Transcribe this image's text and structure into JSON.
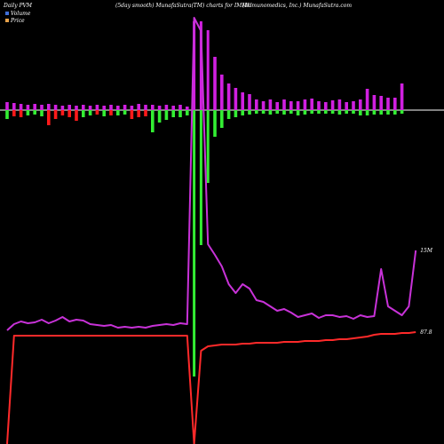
{
  "header": {
    "left": "Daily PVM",
    "center": "(5day smooth) MunafaSutra(TM) charts for IMMU",
    "right": "(Immunomedics, Inc.) MunafaSutra.com"
  },
  "legend": [
    {
      "label": "Volume",
      "color": "#3f6fd8"
    },
    {
      "label": "Price",
      "color": "#e8a24a"
    }
  ],
  "chart_data": {
    "type": "bar",
    "title": "",
    "xlabel": "",
    "ylabel": "",
    "colors": {
      "up": "#d020e0",
      "down_red": "#ff1a1a",
      "down_green": "#33ee33",
      "volume_line": "#c832d8",
      "price_line": "#ff2a2a"
    },
    "end_labels": {
      "volume": "15M",
      "price": "87.8"
    },
    "bars": [
      {
        "up": 9,
        "down": 10,
        "dc": "green"
      },
      {
        "up": 8,
        "down": 7,
        "dc": "red"
      },
      {
        "up": 7,
        "down": 8,
        "dc": "red"
      },
      {
        "up": 6,
        "down": 6,
        "dc": "green"
      },
      {
        "up": 7,
        "down": 5,
        "dc": "green"
      },
      {
        "up": 6,
        "down": 7,
        "dc": "green"
      },
      {
        "up": 7,
        "down": 17,
        "dc": "red"
      },
      {
        "up": 6,
        "down": 10,
        "dc": "red"
      },
      {
        "up": 5,
        "down": 6,
        "dc": "red"
      },
      {
        "up": 6,
        "down": 8,
        "dc": "red"
      },
      {
        "up": 5,
        "down": 12,
        "dc": "red"
      },
      {
        "up": 6,
        "down": 8,
        "dc": "green"
      },
      {
        "up": 5,
        "down": 6,
        "dc": "green"
      },
      {
        "up": 6,
        "down": 5,
        "dc": "red"
      },
      {
        "up": 5,
        "down": 7,
        "dc": "green"
      },
      {
        "up": 6,
        "down": 6,
        "dc": "red"
      },
      {
        "up": 5,
        "down": 6,
        "dc": "green"
      },
      {
        "up": 6,
        "down": 5,
        "dc": "green"
      },
      {
        "up": 5,
        "down": 10,
        "dc": "red"
      },
      {
        "up": 7,
        "down": 8,
        "dc": "red"
      },
      {
        "up": 6,
        "down": 7,
        "dc": "red"
      },
      {
        "up": 6,
        "down": 25,
        "dc": "green"
      },
      {
        "up": 5,
        "down": 14,
        "dc": "green"
      },
      {
        "up": 6,
        "down": 11,
        "dc": "green"
      },
      {
        "up": 5,
        "down": 8,
        "dc": "green"
      },
      {
        "up": 6,
        "down": 8,
        "dc": "green"
      },
      {
        "up": 4,
        "down": 6,
        "dc": "green"
      },
      {
        "up": 100,
        "down": 300,
        "dc": "green"
      },
      {
        "up": 100,
        "down": 152,
        "dc": "green"
      },
      {
        "up": 90,
        "down": 82,
        "dc": "green"
      },
      {
        "up": 60,
        "down": 30,
        "dc": "green"
      },
      {
        "up": 40,
        "down": 20,
        "dc": "green"
      },
      {
        "up": 30,
        "down": 10,
        "dc": "green"
      },
      {
        "up": 25,
        "down": 8,
        "dc": "green"
      },
      {
        "up": 20,
        "down": 6,
        "dc": "green"
      },
      {
        "up": 18,
        "down": 5,
        "dc": "green"
      },
      {
        "up": 12,
        "down": 4,
        "dc": "green"
      },
      {
        "up": 10,
        "down": 4,
        "dc": "green"
      },
      {
        "up": 12,
        "down": 5,
        "dc": "green"
      },
      {
        "up": 9,
        "down": 4,
        "dc": "green"
      },
      {
        "up": 12,
        "down": 5,
        "dc": "green"
      },
      {
        "up": 10,
        "down": 4,
        "dc": "green"
      },
      {
        "up": 10,
        "down": 6,
        "dc": "green"
      },
      {
        "up": 12,
        "down": 5,
        "dc": "green"
      },
      {
        "up": 13,
        "down": 4,
        "dc": "green"
      },
      {
        "up": 10,
        "down": 4,
        "dc": "green"
      },
      {
        "up": 9,
        "down": 4,
        "dc": "green"
      },
      {
        "up": 11,
        "down": 4,
        "dc": "green"
      },
      {
        "up": 12,
        "down": 5,
        "dc": "green"
      },
      {
        "up": 9,
        "down": 4,
        "dc": "green"
      },
      {
        "up": 10,
        "down": 4,
        "dc": "green"
      },
      {
        "up": 12,
        "down": 6,
        "dc": "green"
      },
      {
        "up": 24,
        "down": 6,
        "dc": "green"
      },
      {
        "up": 17,
        "down": 5,
        "dc": "green"
      },
      {
        "up": 16,
        "down": 5,
        "dc": "green"
      },
      {
        "up": 14,
        "down": 5,
        "dc": "green"
      },
      {
        "up": 14,
        "down": 5,
        "dc": "green"
      },
      {
        "up": 30,
        "down": 4,
        "dc": "green"
      }
    ],
    "volume_series": [
      372,
      365,
      362,
      364,
      363,
      360,
      364,
      361,
      357,
      362,
      360,
      361,
      365,
      366,
      367,
      366,
      369,
      368,
      369,
      368,
      369,
      367,
      366,
      365,
      366,
      364,
      365,
      20,
      35,
      275,
      287,
      300,
      320,
      330,
      320,
      325,
      338,
      340,
      345,
      350,
      348,
      352,
      357,
      355,
      353,
      358,
      355,
      355,
      357,
      356,
      359,
      355,
      357,
      356,
      303,
      345,
      350,
      355,
      345,
      282
    ],
    "price_series": [
      500,
      378,
      378,
      378,
      378,
      378,
      378,
      378,
      378,
      378,
      378,
      378,
      378,
      378,
      378,
      378,
      378,
      378,
      378,
      378,
      378,
      378,
      378,
      378,
      378,
      378,
      378,
      500,
      395,
      390,
      389,
      388,
      388,
      388,
      387,
      387,
      386,
      386,
      386,
      386,
      385,
      385,
      385,
      384,
      384,
      384,
      383,
      383,
      382,
      382,
      381,
      380,
      379,
      377,
      376,
      376,
      376,
      375,
      375,
      374
    ]
  }
}
